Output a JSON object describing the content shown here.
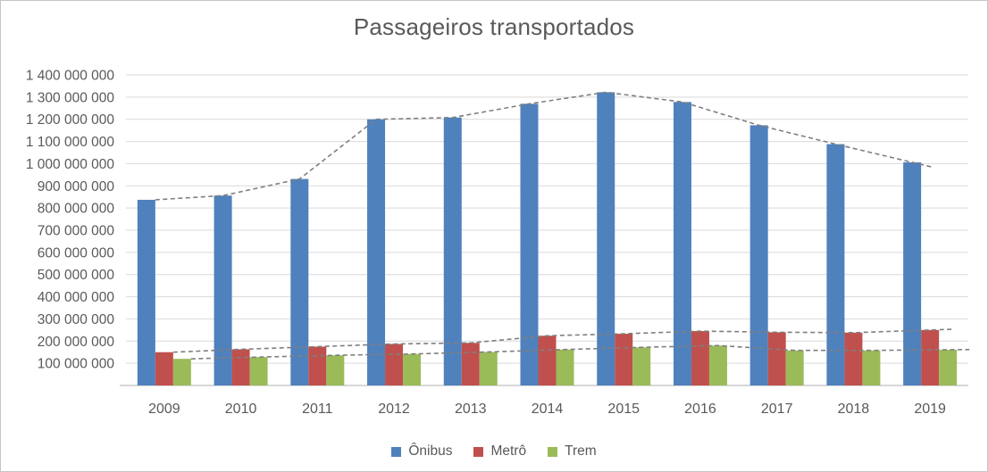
{
  "window": {
    "background": "#ffffff",
    "border_color": "#c6c6c6"
  },
  "chart_data": {
    "type": "bar",
    "title": "Passageiros transportados",
    "xlabel": "",
    "ylabel": "",
    "categories": [
      "2009",
      "2010",
      "2011",
      "2012",
      "2013",
      "2014",
      "2015",
      "2016",
      "2017",
      "2018",
      "2019"
    ],
    "series": [
      {
        "name": "Ônibus",
        "color": "#4F81BD",
        "values": [
          837000000,
          856000000,
          931000000,
          1200000000,
          1208000000,
          1270000000,
          1322000000,
          1278000000,
          1173000000,
          1088000000,
          1006000000
        ]
      },
      {
        "name": "Metrô",
        "color": "#C0504D",
        "values": [
          150000000,
          163000000,
          175000000,
          187000000,
          192000000,
          224000000,
          233000000,
          245000000,
          240000000,
          238000000,
          250000000
        ]
      },
      {
        "name": "Trem",
        "color": "#9BBB59",
        "values": [
          120000000,
          128000000,
          136000000,
          142000000,
          151000000,
          162000000,
          172000000,
          180000000,
          158000000,
          158000000,
          161000000
        ]
      }
    ],
    "trendlines": {
      "per_series": true,
      "style": "dashed",
      "color": "#7F7F7F",
      "note": "gray dashed moving-average style line tracing each series' bar tops"
    },
    "ylim": [
      0,
      1400000000
    ],
    "ytick_step": 100000000,
    "ytick_labels": [
      "1 400 000 000",
      "1 300 000 000",
      "1 200 000 000",
      "1 100 000 000",
      "1 000 000 000",
      "900 000 000",
      "800 000 000",
      "700 000 000",
      "600 000 000",
      "500 000 000",
      "400 000 000",
      "300 000 000",
      "200 000 000",
      "100 000 000"
    ],
    "grid": true,
    "gridline_color": "#D9D9D9",
    "axis_line_color": "#BFBFBF",
    "text_color": "#595959",
    "legend_position": "bottom"
  }
}
